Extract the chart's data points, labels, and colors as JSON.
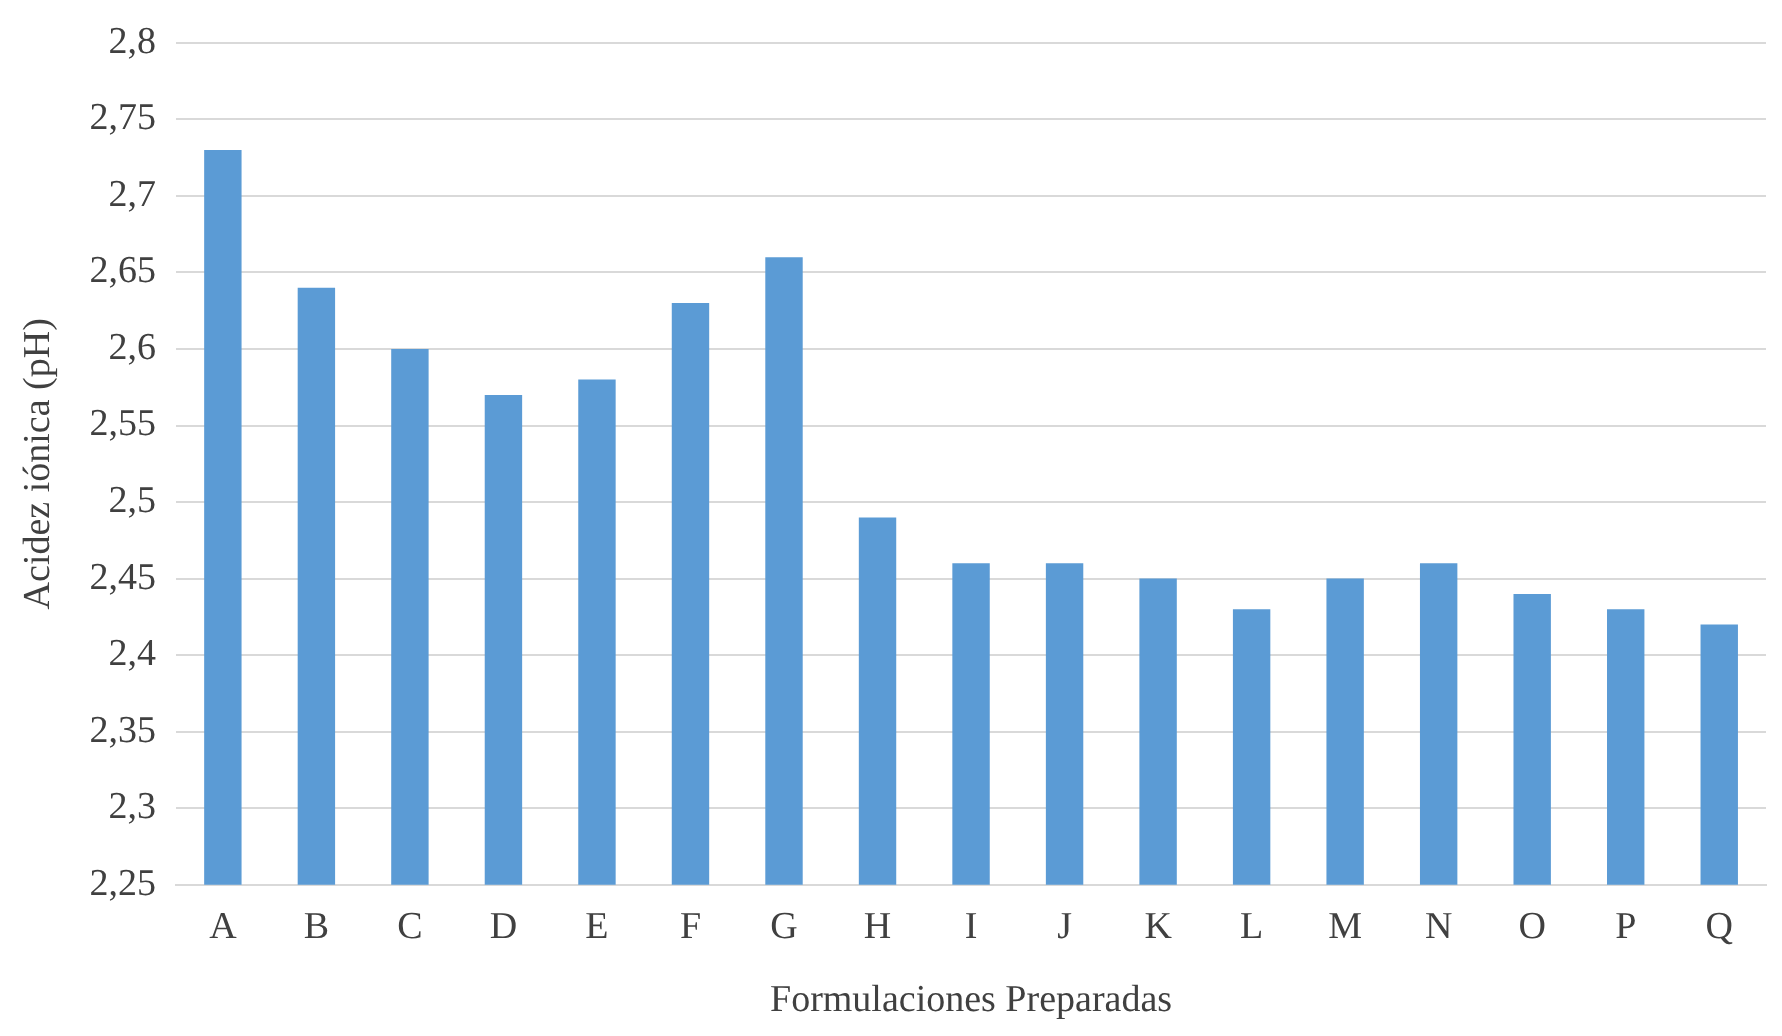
{
  "chart_data": {
    "type": "bar",
    "xlabel": "Formulaciones Preparadas",
    "ylabel": "Acidez iónica (pH)",
    "categories": [
      "A",
      "B",
      "C",
      "D",
      "E",
      "F",
      "G",
      "H",
      "I",
      "J",
      "K",
      "L",
      "M",
      "N",
      "O",
      "P",
      "Q"
    ],
    "values": [
      2.73,
      2.64,
      2.6,
      2.57,
      2.58,
      2.63,
      2.66,
      2.49,
      2.46,
      2.46,
      2.45,
      2.43,
      2.45,
      2.46,
      2.44,
      2.43,
      2.42
    ],
    "color": "#5b9bd5",
    "ylim": [
      2.25,
      2.8
    ],
    "yticks": [
      {
        "value": 2.25,
        "label": "2,25"
      },
      {
        "value": 2.3,
        "label": "2,3"
      },
      {
        "value": 2.35,
        "label": "2,35"
      },
      {
        "value": 2.4,
        "label": "2,4"
      },
      {
        "value": 2.45,
        "label": "2,45"
      },
      {
        "value": 2.5,
        "label": "2,5"
      },
      {
        "value": 2.55,
        "label": "2,55"
      },
      {
        "value": 2.6,
        "label": "2,6"
      },
      {
        "value": 2.65,
        "label": "2,65"
      },
      {
        "value": 2.7,
        "label": "2,7"
      },
      {
        "value": 2.75,
        "label": "2,75"
      },
      {
        "value": 2.8,
        "label": "2,8"
      }
    ],
    "grid": "y"
  }
}
